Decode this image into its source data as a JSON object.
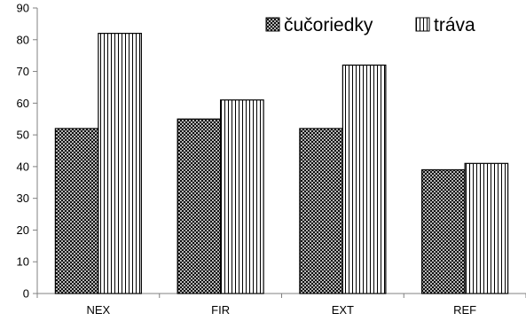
{
  "chart_data": {
    "type": "bar",
    "categories": [
      "NEX",
      "FIR",
      "EXT",
      "REF"
    ],
    "series": [
      {
        "name": "čučoriedky",
        "values": [
          52,
          55,
          52,
          39
        ],
        "pattern": "crosshatch"
      },
      {
        "name": "tráva",
        "values": [
          82,
          61,
          72,
          41
        ],
        "pattern": "vertical-lines"
      }
    ],
    "ylim": [
      0,
      90
    ],
    "yticks": [
      0,
      10,
      20,
      30,
      40,
      50,
      60,
      70,
      80,
      90
    ],
    "grid": false,
    "legend": "top-right",
    "colors": {
      "bar_fill": "#ffffff",
      "bar_stroke": "#000000",
      "axis": "#808080"
    }
  }
}
